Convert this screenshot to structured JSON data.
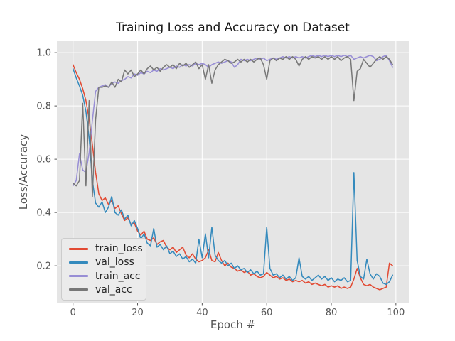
{
  "chart_data": {
    "type": "line",
    "title": "Training Loss and Accuracy on Dataset",
    "xlabel": "Epoch #",
    "ylabel": "Loss/Accuracy",
    "xlim": [
      -5,
      104
    ],
    "ylim": [
      0.059,
      1.043
    ],
    "x_ticks": [
      0,
      20,
      40,
      60,
      80,
      100
    ],
    "y_ticks": [
      0.2,
      0.4,
      0.6,
      0.8,
      1.0
    ],
    "grid": true,
    "legend_position": "lower left",
    "style": {
      "fig_bg": "#ffffff",
      "axes_bg": "#e5e5e5",
      "grid_color": "#ffffff",
      "tick_color": "#555555",
      "title_color": "#1a1a1a"
    },
    "x": [
      0,
      1,
      2,
      3,
      4,
      5,
      6,
      7,
      8,
      9,
      10,
      11,
      12,
      13,
      14,
      15,
      16,
      17,
      18,
      19,
      20,
      21,
      22,
      23,
      24,
      25,
      26,
      27,
      28,
      29,
      30,
      31,
      32,
      33,
      34,
      35,
      36,
      37,
      38,
      39,
      40,
      41,
      42,
      43,
      44,
      45,
      46,
      47,
      48,
      49,
      50,
      51,
      52,
      53,
      54,
      55,
      56,
      57,
      58,
      59,
      60,
      61,
      62,
      63,
      64,
      65,
      66,
      67,
      68,
      69,
      70,
      71,
      72,
      73,
      74,
      75,
      76,
      77,
      78,
      79,
      80,
      81,
      82,
      83,
      84,
      85,
      86,
      87,
      88,
      89,
      90,
      91,
      92,
      93,
      94,
      95,
      96,
      97,
      98,
      99
    ],
    "series": [
      {
        "name": "train_loss",
        "color": "#E24A33",
        "values": [
          0.955,
          0.925,
          0.9,
          0.865,
          0.82,
          0.75,
          0.655,
          0.55,
          0.47,
          0.445,
          0.455,
          0.43,
          0.445,
          0.415,
          0.425,
          0.395,
          0.37,
          0.38,
          0.355,
          0.36,
          0.33,
          0.315,
          0.33,
          0.3,
          0.295,
          0.305,
          0.28,
          0.29,
          0.295,
          0.27,
          0.26,
          0.27,
          0.25,
          0.26,
          0.27,
          0.24,
          0.23,
          0.245,
          0.225,
          0.215,
          0.22,
          0.23,
          0.26,
          0.22,
          0.215,
          0.25,
          0.22,
          0.2,
          0.21,
          0.195,
          0.19,
          0.18,
          0.185,
          0.175,
          0.18,
          0.165,
          0.17,
          0.16,
          0.155,
          0.16,
          0.175,
          0.165,
          0.155,
          0.16,
          0.15,
          0.155,
          0.145,
          0.15,
          0.14,
          0.145,
          0.14,
          0.145,
          0.135,
          0.14,
          0.13,
          0.135,
          0.13,
          0.125,
          0.13,
          0.12,
          0.125,
          0.12,
          0.125,
          0.115,
          0.12,
          0.115,
          0.12,
          0.15,
          0.19,
          0.155,
          0.13,
          0.125,
          0.13,
          0.12,
          0.115,
          0.11,
          0.115,
          0.12,
          0.21,
          0.2
        ]
      },
      {
        "name": "val_loss",
        "color": "#348ABD",
        "values": [
          0.94,
          0.905,
          0.875,
          0.84,
          0.78,
          0.68,
          0.52,
          0.435,
          0.42,
          0.44,
          0.4,
          0.42,
          0.46,
          0.4,
          0.39,
          0.41,
          0.375,
          0.39,
          0.35,
          0.37,
          0.34,
          0.3,
          0.32,
          0.285,
          0.275,
          0.34,
          0.27,
          0.28,
          0.26,
          0.275,
          0.245,
          0.255,
          0.235,
          0.245,
          0.225,
          0.235,
          0.215,
          0.225,
          0.21,
          0.3,
          0.23,
          0.32,
          0.23,
          0.345,
          0.24,
          0.22,
          0.21,
          0.22,
          0.2,
          0.21,
          0.19,
          0.2,
          0.185,
          0.19,
          0.175,
          0.185,
          0.17,
          0.18,
          0.165,
          0.17,
          0.345,
          0.19,
          0.165,
          0.17,
          0.155,
          0.165,
          0.15,
          0.16,
          0.145,
          0.155,
          0.23,
          0.16,
          0.15,
          0.16,
          0.145,
          0.155,
          0.165,
          0.15,
          0.16,
          0.145,
          0.155,
          0.14,
          0.15,
          0.145,
          0.155,
          0.14,
          0.145,
          0.55,
          0.22,
          0.16,
          0.15,
          0.225,
          0.17,
          0.15,
          0.17,
          0.16,
          0.135,
          0.13,
          0.14,
          0.165
        ]
      },
      {
        "name": "train_acc",
        "color": "#988ED5",
        "values": [
          0.5,
          0.52,
          0.62,
          0.56,
          0.55,
          0.625,
          0.745,
          0.855,
          0.87,
          0.875,
          0.88,
          0.87,
          0.885,
          0.89,
          0.885,
          0.895,
          0.9,
          0.91,
          0.905,
          0.92,
          0.915,
          0.925,
          0.92,
          0.93,
          0.925,
          0.935,
          0.93,
          0.94,
          0.935,
          0.94,
          0.945,
          0.94,
          0.95,
          0.945,
          0.955,
          0.95,
          0.955,
          0.95,
          0.96,
          0.955,
          0.96,
          0.955,
          0.945,
          0.955,
          0.96,
          0.965,
          0.96,
          0.965,
          0.97,
          0.965,
          0.945,
          0.955,
          0.975,
          0.97,
          0.975,
          0.97,
          0.975,
          0.98,
          0.975,
          0.98,
          0.97,
          0.975,
          0.98,
          0.975,
          0.98,
          0.985,
          0.98,
          0.985,
          0.98,
          0.985,
          0.98,
          0.985,
          0.98,
          0.985,
          0.99,
          0.985,
          0.99,
          0.985,
          0.99,
          0.985,
          0.99,
          0.985,
          0.99,
          0.985,
          0.99,
          0.985,
          0.99,
          0.975,
          0.98,
          0.985,
          0.98,
          0.985,
          0.99,
          0.985,
          0.97,
          0.975,
          0.985,
          0.99,
          0.97,
          0.945
        ]
      },
      {
        "name": "val_acc",
        "color": "#777777",
        "values": [
          0.51,
          0.5,
          0.52,
          0.81,
          0.5,
          0.82,
          0.46,
          0.75,
          0.87,
          0.87,
          0.875,
          0.87,
          0.89,
          0.87,
          0.9,
          0.89,
          0.935,
          0.92,
          0.935,
          0.91,
          0.92,
          0.935,
          0.92,
          0.94,
          0.95,
          0.935,
          0.945,
          0.93,
          0.945,
          0.955,
          0.945,
          0.955,
          0.94,
          0.96,
          0.95,
          0.96,
          0.945,
          0.955,
          0.965,
          0.94,
          0.955,
          0.9,
          0.955,
          0.885,
          0.935,
          0.955,
          0.965,
          0.975,
          0.97,
          0.96,
          0.965,
          0.975,
          0.965,
          0.975,
          0.965,
          0.975,
          0.965,
          0.975,
          0.98,
          0.955,
          0.9,
          0.97,
          0.98,
          0.97,
          0.98,
          0.975,
          0.985,
          0.975,
          0.985,
          0.975,
          0.95,
          0.975,
          0.985,
          0.975,
          0.985,
          0.98,
          0.985,
          0.975,
          0.985,
          0.975,
          0.985,
          0.975,
          0.985,
          0.97,
          0.98,
          0.985,
          0.975,
          0.82,
          0.93,
          0.94,
          0.975,
          0.96,
          0.945,
          0.96,
          0.975,
          0.985,
          0.975,
          0.985,
          0.975,
          0.955
        ]
      }
    ]
  }
}
